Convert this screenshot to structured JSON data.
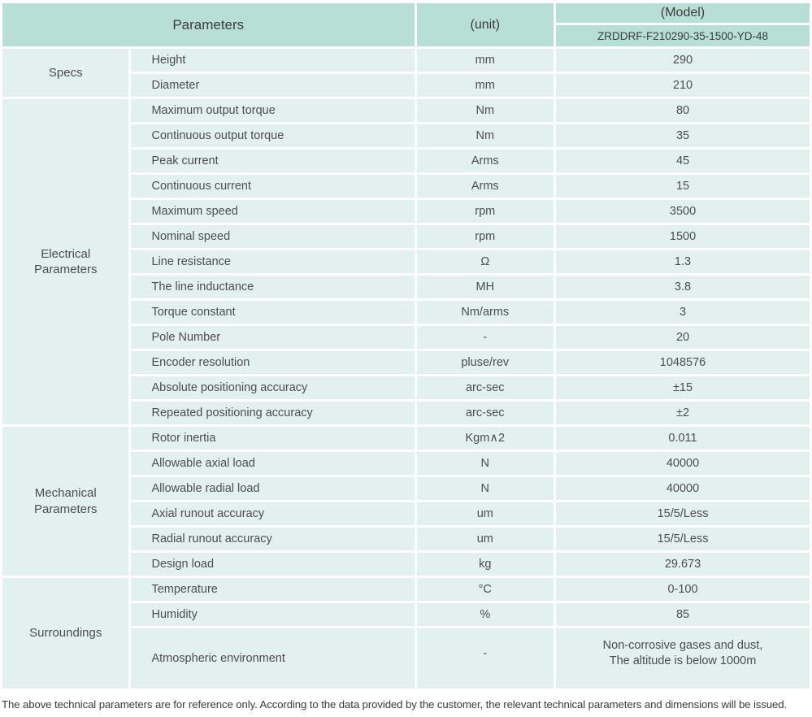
{
  "header": {
    "parameters_label": "Parameters",
    "unit_label": "(unit)",
    "model_label": "(Model)",
    "model_value": "ZRDDRF-F210290-35-1500-YD-48"
  },
  "colors": {
    "header_bg": "#b7dfd5",
    "row_bg": "#e2f1ee",
    "text": "#4d4d4d"
  },
  "groups": [
    {
      "label": "Specs",
      "rows": [
        {
          "name": "Height",
          "unit": "mm",
          "value": "290"
        },
        {
          "name": "Diameter",
          "unit": "mm",
          "value": "210"
        }
      ]
    },
    {
      "label": "Electrical Parameters",
      "rows": [
        {
          "name": "Maximum output torque",
          "unit": "Nm",
          "value": "80"
        },
        {
          "name": "Continuous output torque",
          "unit": "Nm",
          "value": "35"
        },
        {
          "name": "Peak current",
          "unit": "Arms",
          "value": "45"
        },
        {
          "name": "Continuous current",
          "unit": "Arms",
          "value": "15"
        },
        {
          "name": "Maximum speed",
          "unit": "rpm",
          "value": "3500"
        },
        {
          "name": "Nominal speed",
          "unit": "rpm",
          "value": "1500"
        },
        {
          "name": "Line resistance",
          "unit": "Ω",
          "value": "1.3"
        },
        {
          "name": "The line inductance",
          "unit": "MH",
          "value": "3.8"
        },
        {
          "name": "Torque constant",
          "unit": "Nm/arms",
          "value": "3"
        },
        {
          "name": "Pole Number",
          "unit": "-",
          "value": "20"
        },
        {
          "name": "Encoder resolution",
          "unit": "pluse/rev",
          "value": "1048576"
        },
        {
          "name": "Absolute positioning accuracy",
          "unit": "arc-sec",
          "value": "±15"
        },
        {
          "name": "Repeated positioning accuracy",
          "unit": "arc-sec",
          "value": "±2"
        }
      ]
    },
    {
      "label": "Mechanical Parameters",
      "rows": [
        {
          "name": "Rotor inertia",
          "unit": "Kgm∧2",
          "value": "0.011"
        },
        {
          "name": "Allowable axial load",
          "unit": "N",
          "value": "40000"
        },
        {
          "name": "Allowable radial load",
          "unit": "N",
          "value": "40000"
        },
        {
          "name": "Axial runout accuracy",
          "unit": "um",
          "value": "15/5/Less"
        },
        {
          "name": "Radial runout accuracy",
          "unit": "um",
          "value": "15/5/Less"
        },
        {
          "name": "Design load",
          "unit": "kg",
          "value": "29.673"
        }
      ]
    },
    {
      "label": "Surroundings",
      "rows": [
        {
          "name": "Temperature",
          "unit": "°C",
          "value": "0-100"
        },
        {
          "name": "Humidity",
          "unit": "%",
          "value": "85"
        },
        {
          "name": "Atmospheric environment",
          "unit": "-",
          "value": "Non-corrosive gases and dust,\nThe altitude is below 1000m"
        }
      ]
    }
  ],
  "footer": {
    "note": "The above technical parameters are for reference only. According to the data provided by the customer, the relevant technical parameters and dimensions will be issued."
  }
}
